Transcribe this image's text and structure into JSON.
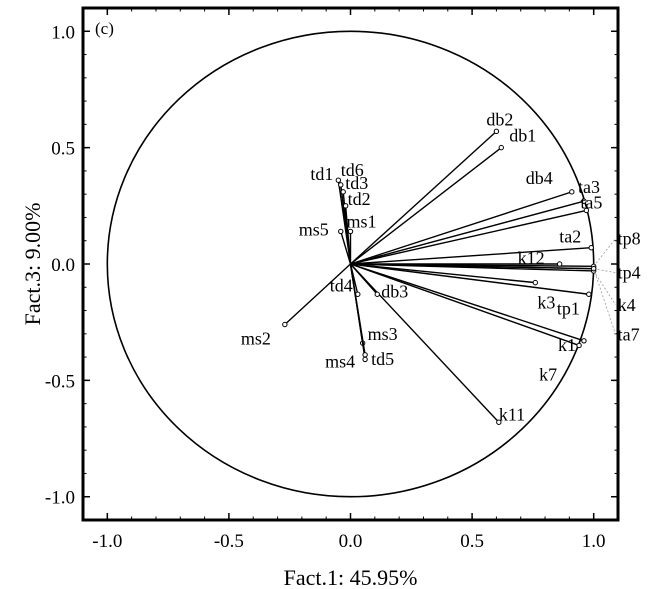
{
  "chart_data": {
    "type": "scatter",
    "panel_label": "(c)",
    "xlabel": "Fact.1: 45.95%",
    "ylabel": "Fact.3: 9.00%",
    "xlim": [
      -1.1,
      1.1
    ],
    "ylim": [
      -1.1,
      1.1
    ],
    "xticks": [
      -1.0,
      -0.5,
      0.0,
      0.5,
      1.0
    ],
    "xtick_labels": [
      "-1.0",
      "-0.5",
      "0.0",
      "0.5",
      "1.0"
    ],
    "yticks": [
      -1.0,
      -0.5,
      0.0,
      0.5,
      1.0
    ],
    "ytick_labels": [
      "-1.0",
      "-0.5",
      "0.0",
      "0.5",
      "1.0"
    ],
    "unit_circle": true,
    "grid": false,
    "points": [
      {
        "label": "db2",
        "x": 0.6,
        "y": 0.57
      },
      {
        "label": "db1",
        "x": 0.62,
        "y": 0.5
      },
      {
        "label": "db4",
        "x": 0.91,
        "y": 0.31
      },
      {
        "label": "ta3",
        "x": 0.96,
        "y": 0.27
      },
      {
        "label": "ta5",
        "x": 0.97,
        "y": 0.23
      },
      {
        "label": "ta2",
        "x": 0.99,
        "y": 0.07
      },
      {
        "label": "tp8",
        "x": 1.0,
        "y": -0.01
      },
      {
        "label": "tp4",
        "x": 1.0,
        "y": -0.02
      },
      {
        "label": "k4",
        "x": 1.0,
        "y": -0.03
      },
      {
        "label": "ta7",
        "x": 1.0,
        "y": -0.02
      },
      {
        "label": "k12",
        "x": 0.86,
        "y": 0.0
      },
      {
        "label": "k3",
        "x": 0.76,
        "y": -0.08
      },
      {
        "label": "tp1",
        "x": 0.98,
        "y": -0.13
      },
      {
        "label": "k1",
        "x": 0.96,
        "y": -0.33
      },
      {
        "label": "k7",
        "x": 0.94,
        "y": -0.35
      },
      {
        "label": "k11",
        "x": 0.61,
        "y": -0.68
      },
      {
        "label": "td1",
        "x": -0.05,
        "y": 0.36
      },
      {
        "label": "td6",
        "x": -0.04,
        "y": 0.34
      },
      {
        "label": "td3",
        "x": -0.03,
        "y": 0.31
      },
      {
        "label": "td2",
        "x": -0.02,
        "y": 0.25
      },
      {
        "label": "ms1",
        "x": 0.0,
        "y": 0.14
      },
      {
        "label": "ms5",
        "x": -0.04,
        "y": 0.14
      },
      {
        "label": "td4",
        "x": 0.03,
        "y": -0.13
      },
      {
        "label": "db3",
        "x": 0.11,
        "y": -0.13
      },
      {
        "label": "ms3",
        "x": 0.05,
        "y": -0.34
      },
      {
        "label": "ms4",
        "x": 0.06,
        "y": -0.41
      },
      {
        "label": "td5",
        "x": 0.06,
        "y": -0.39
      },
      {
        "label": "ms2",
        "x": -0.27,
        "y": -0.26
      }
    ]
  }
}
